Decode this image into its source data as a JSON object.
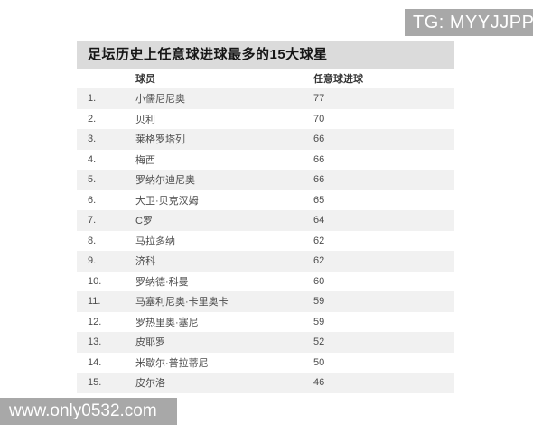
{
  "badge": {
    "label": "TG: MYYJJPP"
  },
  "watermark": {
    "label": "www.only0532.com"
  },
  "chart_data": {
    "type": "table",
    "title": "足坛历史上任意球进球最多的15大球星",
    "columns": [
      "球员",
      "任意球进球"
    ],
    "rows": [
      {
        "rank": "1.",
        "player": "小儒尼尼奥",
        "goals": 77
      },
      {
        "rank": "2.",
        "player": "贝利",
        "goals": 70
      },
      {
        "rank": "3.",
        "player": "莱格罗塔列",
        "goals": 66
      },
      {
        "rank": "4.",
        "player": "梅西",
        "goals": 66
      },
      {
        "rank": "5.",
        "player": "罗纳尔迪尼奥",
        "goals": 66
      },
      {
        "rank": "6.",
        "player": "大卫·贝克汉姆",
        "goals": 65
      },
      {
        "rank": "7.",
        "player": "C罗",
        "goals": 64
      },
      {
        "rank": "8.",
        "player": "马拉多纳",
        "goals": 62
      },
      {
        "rank": "9.",
        "player": "济科",
        "goals": 62
      },
      {
        "rank": "10.",
        "player": "罗纳德·科曼",
        "goals": 60
      },
      {
        "rank": "11.",
        "player": "马塞利尼奥·卡里奥卡",
        "goals": 59
      },
      {
        "rank": "12.",
        "player": "罗热里奥·塞尼",
        "goals": 59
      },
      {
        "rank": "13.",
        "player": "皮耶罗",
        "goals": 52
      },
      {
        "rank": "14.",
        "player": "米歇尔·普拉蒂尼",
        "goals": 50
      },
      {
        "rank": "15.",
        "player": "皮尔洛",
        "goals": 46
      }
    ]
  },
  "colors": {
    "badge_bg": "#a8a8a8",
    "title_bar_bg": "#dbdbdb",
    "row_alt_bg": "#f1f1f1"
  }
}
